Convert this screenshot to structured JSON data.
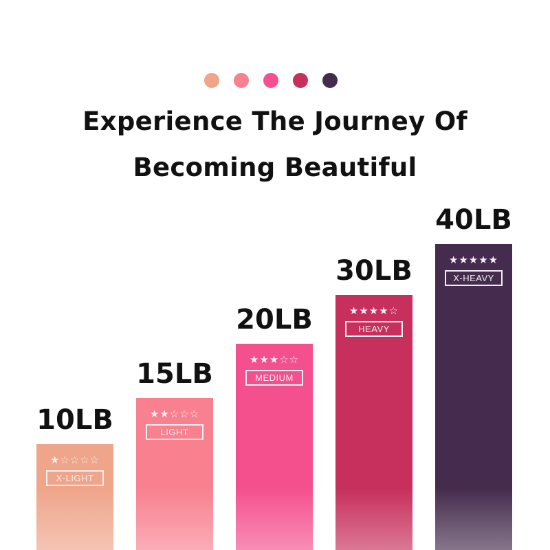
{
  "header": {
    "dot_colors": [
      "#EFA58A",
      "#F9808F",
      "#F5508E",
      "#C72F5C",
      "#452C4E"
    ],
    "title_line1": "Experience The Journey Of",
    "title_line2": "Becoming Beautiful"
  },
  "chart_data": {
    "type": "bar",
    "title": "",
    "xlabel": "",
    "ylabel": "",
    "categories": [
      "10LB",
      "15LB",
      "20LB",
      "30LB",
      "40LB"
    ],
    "values": [
      10,
      15,
      20,
      30,
      40
    ],
    "levels": [
      "X-LIGHT",
      "LIGHT",
      "MEDIUM",
      "HEAVY",
      "X-HEAVY"
    ],
    "star_ratings": [
      1,
      2,
      3,
      4,
      5
    ],
    "star_max": 5,
    "colors": [
      "#EFA58A",
      "#F9808F",
      "#F5508E",
      "#C72F5C",
      "#452C4E"
    ],
    "grid": false
  }
}
